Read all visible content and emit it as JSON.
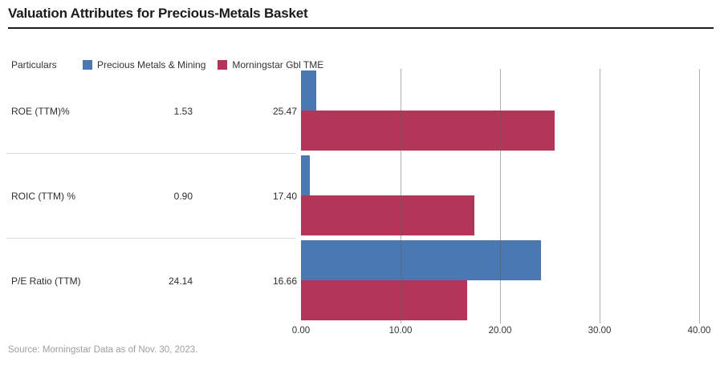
{
  "title": "Valuation Attributes for Precious-Metals Basket",
  "legend": {
    "particulars_label": "Particulars",
    "items": [
      {
        "label": "Precious Metals & Mining",
        "color": "#4b77b3"
      },
      {
        "label": "Morningstar Gbl TME",
        "color": "#b33557"
      }
    ]
  },
  "table": {
    "rows": [
      {
        "label": "ROE (TTM)%",
        "values": [
          "1.53",
          "25.47"
        ]
      },
      {
        "label": "ROIC (TTM) %",
        "values": [
          "0.90",
          "17.40"
        ]
      },
      {
        "label": "P/E Ratio (TTM)",
        "values": [
          "24.14",
          "16.66"
        ]
      }
    ]
  },
  "axis": {
    "tick_labels": [
      "0.00",
      "10.00",
      "20.00",
      "30.00",
      "40.00"
    ]
  },
  "source": "Source: Morningstar Data as of Nov. 30, 2023.",
  "chart_data": {
    "type": "bar",
    "orientation": "horizontal",
    "title": "Valuation Attributes for Precious-Metals Basket",
    "categories": [
      "ROE (TTM)%",
      "ROIC (TTM) %",
      "P/E Ratio (TTM)"
    ],
    "series": [
      {
        "name": "Precious Metals & Mining",
        "color": "#4b77b3",
        "values": [
          1.53,
          0.9,
          24.14
        ]
      },
      {
        "name": "Morningstar Gbl TME",
        "color": "#b33557",
        "values": [
          25.47,
          17.4,
          16.66
        ]
      }
    ],
    "xlabel": "",
    "ylabel": "",
    "xlim": [
      0,
      40
    ],
    "x_ticks": [
      0,
      10,
      20,
      30,
      40
    ],
    "gridlines": [
      10,
      20,
      30,
      40
    ],
    "grid": true,
    "legend_position": "top"
  }
}
